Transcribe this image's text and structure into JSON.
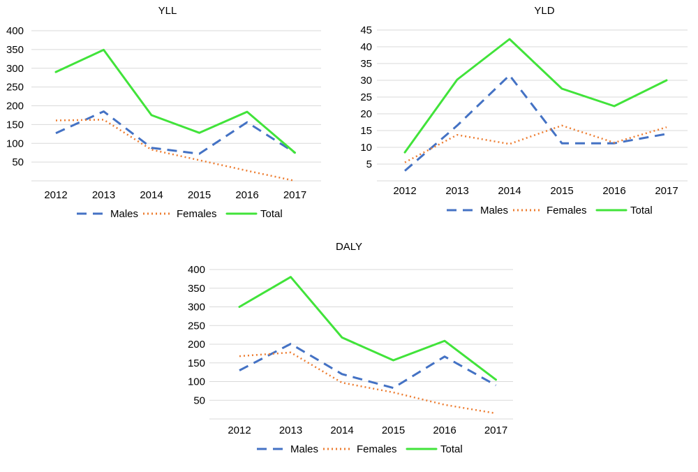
{
  "colors": {
    "males": "#4472C4",
    "females": "#ED7D31",
    "total": "#41E33A"
  },
  "chart_data": [
    {
      "type": "line",
      "title": "YLL",
      "categories": [
        "2012",
        "2013",
        "2014",
        "2015",
        "2016",
        "2017"
      ],
      "yticks": [
        "50",
        "100",
        "150",
        "200",
        "250",
        "300",
        "350",
        "400"
      ],
      "ylim": [
        0,
        400
      ],
      "grid": true,
      "legend": "bottom",
      "series": [
        {
          "name": "Males",
          "style": "dashed",
          "values": [
            127,
            185,
            88,
            72,
            156,
            75
          ]
        },
        {
          "name": "Females",
          "style": "dotted",
          "values": [
            161,
            163,
            83,
            55,
            27,
            0
          ]
        },
        {
          "name": "Total",
          "style": "solid",
          "values": [
            290,
            349,
            175,
            128,
            184,
            75
          ]
        }
      ]
    },
    {
      "type": "line",
      "title": "YLD",
      "categories": [
        "2012",
        "2013",
        "2014",
        "2015",
        "2016",
        "2017"
      ],
      "yticks": [
        "5",
        "10",
        "15",
        "20",
        "25",
        "30",
        "35",
        "40",
        "45"
      ],
      "ylim": [
        0,
        45
      ],
      "grid": true,
      "legend": "bottom",
      "series": [
        {
          "name": "Males",
          "style": "dashed",
          "values": [
            3,
            16.5,
            31.5,
            11.2,
            11.2,
            14
          ]
        },
        {
          "name": "Females",
          "style": "dotted",
          "values": [
            5.5,
            13.7,
            11,
            16.5,
            11.4,
            16
          ]
        },
        {
          "name": "Total",
          "style": "solid",
          "values": [
            8.5,
            30.2,
            42.3,
            27.5,
            22.3,
            30
          ]
        }
      ]
    },
    {
      "type": "line",
      "title": "DALY",
      "categories": [
        "2012",
        "2013",
        "2014",
        "2015",
        "2016",
        "2017"
      ],
      "yticks": [
        "50",
        "100",
        "150",
        "200",
        "250",
        "300",
        "350",
        "400"
      ],
      "ylim": [
        0,
        400
      ],
      "grid": true,
      "legend": "bottom",
      "series": [
        {
          "name": "Males",
          "style": "dashed",
          "values": [
            130,
            201,
            120,
            83,
            167,
            90
          ]
        },
        {
          "name": "Females",
          "style": "dotted",
          "values": [
            168,
            178,
            97,
            71,
            38,
            15
          ]
        },
        {
          "name": "Total",
          "style": "solid",
          "values": [
            300,
            380,
            218,
            157,
            209,
            105
          ]
        }
      ]
    }
  ]
}
